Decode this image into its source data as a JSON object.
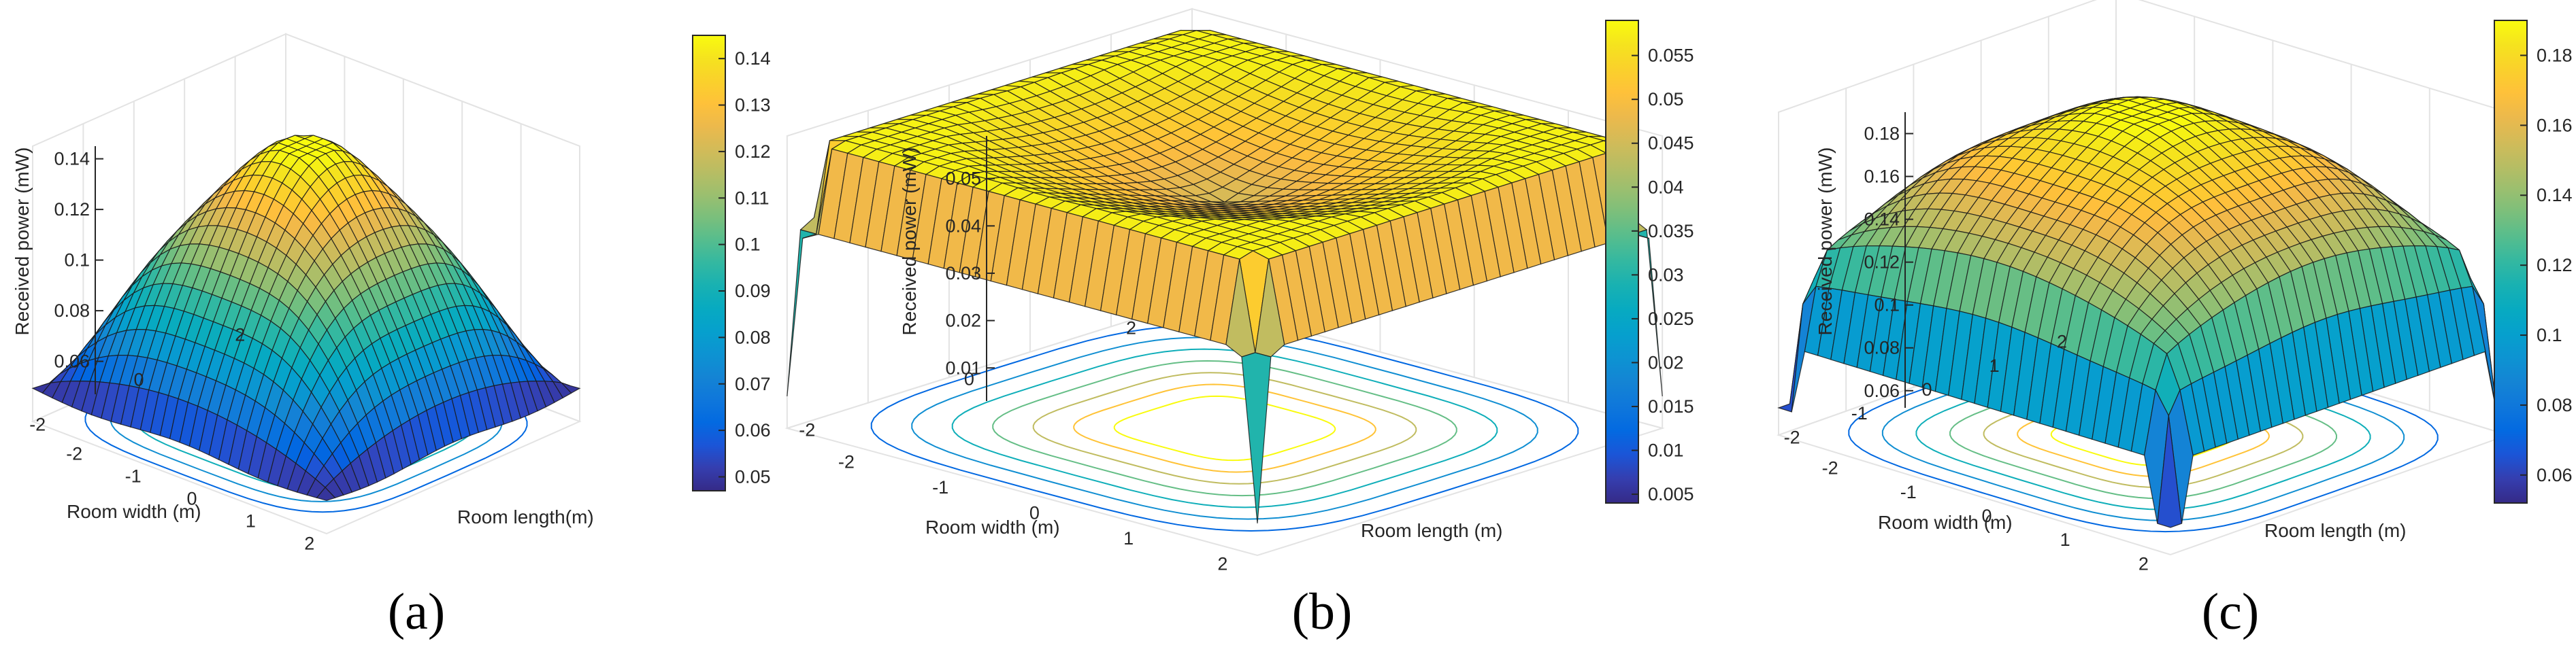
{
  "colors": {
    "parula_low": "#352a87",
    "parula_mid": "#21a8c9",
    "parula_high": "#f9fb0e",
    "wire": "#1a1a1a",
    "axis": "#262626",
    "grid": "#e3e3e3"
  },
  "chart_data": [
    {
      "type": "surface",
      "caption": "(a)",
      "zlabel": "Received power (mW)",
      "xlabel": "Room length(m)",
      "ylabel": "Room width (m)",
      "x_ticks": [
        "-2",
        "-1",
        "0",
        "1",
        "2"
      ],
      "y_ticks": [
        "-2",
        "0",
        "2"
      ],
      "z_ticks": [
        "0.06",
        "0.08",
        "0.1",
        "0.12",
        "0.14"
      ],
      "zlim": [
        0.047,
        0.145
      ],
      "xlim": [
        -2.5,
        2.5
      ],
      "ylim": [
        -2.5,
        2.5
      ],
      "colorbar": {
        "ticks": [
          "0.05",
          "0.06",
          "0.07",
          "0.08",
          "0.09",
          "0.1",
          "0.11",
          "0.12",
          "0.13",
          "0.14"
        ],
        "range": [
          0.047,
          0.145
        ]
      },
      "profile": "dome",
      "peak": 0.145,
      "corner": 0.047,
      "contours_on_floor": true,
      "grid": true
    },
    {
      "type": "surface",
      "caption": "(b)",
      "zlabel": "Received power (mW)",
      "xlabel": "Room length (m)",
      "ylabel": "Room width (m)",
      "x_ticks": [
        "-2",
        "-1",
        "0",
        "1",
        "2"
      ],
      "y_ticks": [
        "-2",
        "0",
        "2"
      ],
      "z_ticks": [
        "0.01",
        "0.02",
        "0.03",
        "0.04",
        "0.05"
      ],
      "zlim": [
        0.003,
        0.059
      ],
      "xlim": [
        -2.5,
        2.5
      ],
      "ylim": [
        -2.5,
        2.5
      ],
      "colorbar": {
        "ticks": [
          "0.005",
          "0.01",
          "0.015",
          "0.02",
          "0.025",
          "0.03",
          "0.035",
          "0.04",
          "0.045",
          "0.05",
          "0.055"
        ],
        "range": [
          0.004,
          0.059
        ]
      },
      "profile": "bowl",
      "peak": 0.058,
      "center": 0.045,
      "edge_wall": 0.04,
      "corner": 0.004,
      "contours_on_floor": true,
      "grid": true
    },
    {
      "type": "surface",
      "caption": "(c)",
      "zlabel": "Received power (mW)",
      "xlabel": "Room length (m)",
      "ylabel": "Room width (m)",
      "x_ticks": [
        "-2",
        "-1",
        "0",
        "1",
        "2"
      ],
      "y_ticks": [
        "-2",
        "-1",
        "0",
        "1",
        "2"
      ],
      "z_ticks": [
        "0.06",
        "0.08",
        "0.1",
        "0.12",
        "0.14",
        "0.16",
        "0.18"
      ],
      "zlim": [
        0.052,
        0.19
      ],
      "xlim": [
        -2.5,
        2.5
      ],
      "ylim": [
        -2.5,
        2.5
      ],
      "colorbar": {
        "ticks": [
          "0.06",
          "0.08",
          "0.1",
          "0.12",
          "0.14",
          "0.16",
          "0.18"
        ],
        "range": [
          0.052,
          0.19
        ]
      },
      "profile": "dome_walls",
      "peak": 0.19,
      "edge_wall": 0.12,
      "corner": 0.052,
      "contours_on_floor": true,
      "grid": true
    }
  ]
}
